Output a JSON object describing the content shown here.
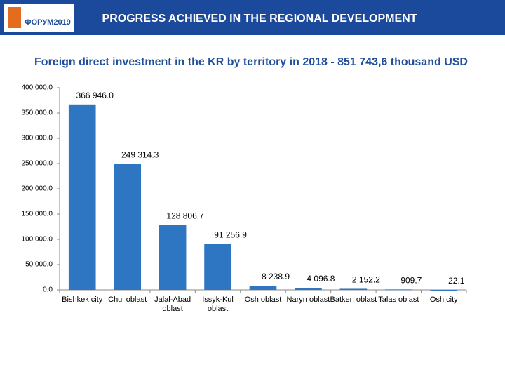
{
  "header": {
    "logo": "ФОРУМ2019",
    "title": "PROGRESS ACHIEVED IN THE REGIONAL DEVELOPMENT"
  },
  "chart_data": {
    "type": "bar",
    "title": "Foreign direct investment in the KR by territory in 2018 - 851 743,6 thousand USD",
    "categories": [
      "Bishkek city",
      "Chui oblast",
      "Jalal-Abad oblast",
      "Issyk-Kul oblast",
      "Osh oblast",
      "Naryn oblast",
      "Batken oblast",
      "Talas oblast",
      "Osh city"
    ],
    "values": [
      366946.0,
      249314.3,
      128806.7,
      91256.9,
      8238.9,
      4096.8,
      2152.2,
      909.7,
      22.1
    ],
    "value_labels": [
      "366 946.0",
      "249 314.3",
      "128 806.7",
      "91 256.9",
      "8 238.9",
      "4 096.8",
      "2 152.2",
      "909.7",
      "22.1"
    ],
    "color": "#2f76c2",
    "ylim": [
      0,
      400000
    ],
    "yticks": [
      {
        "value": 0,
        "label": "0.0"
      },
      {
        "value": 50000,
        "label": "50 000.0"
      },
      {
        "value": 100000,
        "label": "100 000.0"
      },
      {
        "value": 150000,
        "label": "150 000.0"
      },
      {
        "value": 200000,
        "label": "200 000.0"
      },
      {
        "value": 250000,
        "label": "250 000.0"
      },
      {
        "value": 300000,
        "label": "300 000.0"
      },
      {
        "value": 350000,
        "label": "350 000.0"
      },
      {
        "value": 400000,
        "label": "400 000.0"
      }
    ],
    "grid": false
  }
}
